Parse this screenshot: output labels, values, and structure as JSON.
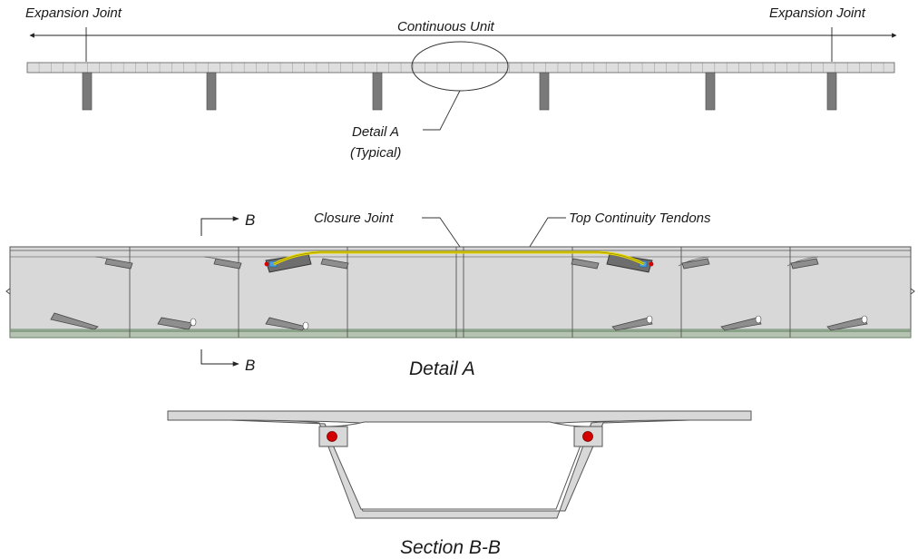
{
  "elevation": {
    "expansion_left": "Expansion Joint",
    "continuous_unit": "Continuous Unit",
    "expansion_right": "Expansion Joint",
    "detail_callout_line1": "Detail A",
    "detail_callout_line2": "(Typical)"
  },
  "detail_a": {
    "section_mark": "B",
    "closure_joint": "Closure Joint",
    "top_tendons": "Top Continuity Tendons",
    "title": "Detail A"
  },
  "section": {
    "title": "Section B-B"
  },
  "colors": {
    "segment_fill": "#d8d8d8",
    "tendon": "#e8d800",
    "duct_red": "#d40000",
    "anchor_blue": "#4aa0e0",
    "bottom_slab_green": "#6c8c6c"
  }
}
